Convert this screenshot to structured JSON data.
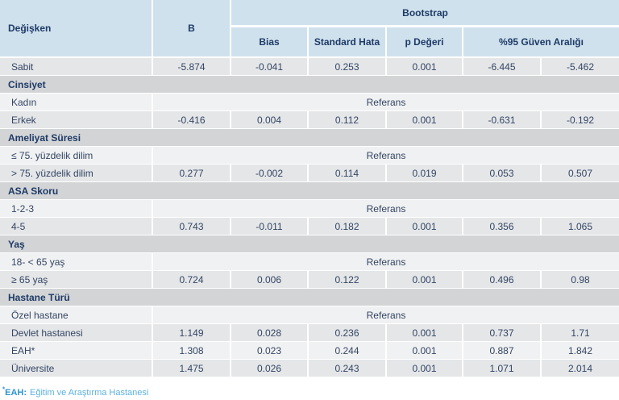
{
  "table": {
    "header": {
      "col_variable": "Değişken",
      "col_b": "B",
      "bootstrap": "Bootstrap",
      "col_bias": "Bias",
      "col_se": "Standard Hata",
      "col_p": "p Değeri",
      "col_ci": "%95 Güven Aralığı"
    },
    "referans_label": "Referans",
    "rows": [
      {
        "type": "data",
        "shade": "mid",
        "label": "Sabit",
        "b": "-5.874",
        "bias": "-0.041",
        "se": "0.253",
        "p": "0.001",
        "ci_low": "-6.445",
        "ci_high": "-5.462"
      },
      {
        "type": "section",
        "label": "Cinsiyet"
      },
      {
        "type": "referans",
        "shade": "light",
        "label": "Kadın"
      },
      {
        "type": "data",
        "shade": "mid",
        "label": "Erkek",
        "b": "-0.416",
        "bias": "0.004",
        "se": "0.112",
        "p": "0.001",
        "ci_low": "-0.631",
        "ci_high": "-0.192"
      },
      {
        "type": "section",
        "label": "Ameliyat Süresi"
      },
      {
        "type": "referans",
        "shade": "light",
        "label": "≤ 75. yüzdelik dilim"
      },
      {
        "type": "data",
        "shade": "mid",
        "label": "> 75. yüzdelik dilim",
        "b": "0.277",
        "bias": "-0.002",
        "se": "0.114",
        "p": "0.019",
        "ci_low": "0.053",
        "ci_high": "0.507"
      },
      {
        "type": "section",
        "label": "ASA Skoru"
      },
      {
        "type": "referans",
        "shade": "light",
        "label": "1-2-3"
      },
      {
        "type": "data",
        "shade": "mid",
        "label": "4-5",
        "b": "0.743",
        "bias": "-0.011",
        "se": "0.182",
        "p": "0.001",
        "ci_low": "0.356",
        "ci_high": "1.065"
      },
      {
        "type": "section",
        "label": "Yaş"
      },
      {
        "type": "referans",
        "shade": "light",
        "label": "18- < 65 yaş"
      },
      {
        "type": "data",
        "shade": "mid",
        "label": "≥ 65 yaş",
        "b": "0.724",
        "bias": "0.006",
        "se": "0.122",
        "p": "0.001",
        "ci_low": "0.496",
        "ci_high": "0.98"
      },
      {
        "type": "section",
        "label": "Hastane Türü"
      },
      {
        "type": "referans",
        "shade": "light",
        "label": "Özel hastane"
      },
      {
        "type": "data",
        "shade": "mid",
        "label": "Devlet hastanesi",
        "b": "1.149",
        "bias": "0.028",
        "se": "0.236",
        "p": "0.001",
        "ci_low": "0.737",
        "ci_high": "1.71"
      },
      {
        "type": "data",
        "shade": "light",
        "label": "EAH*",
        "b": "1.308",
        "bias": "0.023",
        "se": "0.244",
        "p": "0.001",
        "ci_low": "0.887",
        "ci_high": "1.842"
      },
      {
        "type": "data",
        "shade": "mid",
        "label": "Üniversite",
        "b": "1.475",
        "bias": "0.026",
        "se": "0.243",
        "p": "0.001",
        "ci_low": "1.071",
        "ci_high": "2.014"
      }
    ]
  },
  "footnote": {
    "marker": "*",
    "term": "EAH:",
    "definition": "Eğitim ve Araştırma Hastanesi"
  },
  "colors": {
    "header_bg": "#cfe1ed",
    "header_text": "#1e3a66",
    "section_bg": "#d2d4d6",
    "row_mid_bg": "#e4e6e8",
    "row_light_bg": "#f0f1f2",
    "body_text": "#344563",
    "footnote_term": "#2e95cd",
    "footnote_text": "#5cb0e0"
  }
}
